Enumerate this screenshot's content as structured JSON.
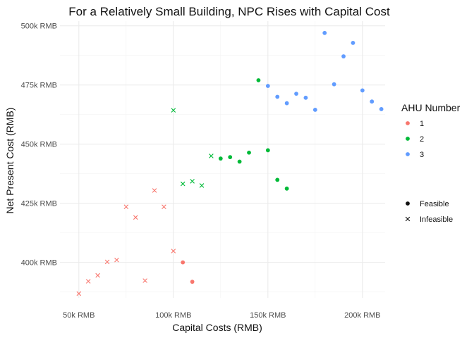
{
  "chart_data": {
    "type": "scatter",
    "title": "For a Relatively Small Building, NPC Rises with Capital Cost",
    "xlabel": "Capital Costs (RMB)",
    "ylabel": "Net Present Cost (RMB)",
    "xlim": [
      40000,
      212000
    ],
    "ylim": [
      385000,
      502000
    ],
    "x_ticks": [
      50000,
      100000,
      150000,
      200000
    ],
    "x_tick_labels": [
      "50k RMB",
      "100k RMB",
      "150k RMB",
      "200k RMB"
    ],
    "y_ticks": [
      400000,
      425000,
      450000,
      475000,
      500000
    ],
    "y_tick_labels": [
      "400k RMB",
      "425k RMB",
      "450k RMB",
      "475k RMB",
      "500k RMB"
    ],
    "grid": true,
    "legend_color": {
      "title": "AHU Number",
      "placement": "right",
      "entries": [
        {
          "label": "1",
          "color": "#F8766D"
        },
        {
          "label": "2",
          "color": "#00BA38"
        },
        {
          "label": "3",
          "color": "#619CFF"
        }
      ]
    },
    "legend_shape": {
      "placement": "right",
      "entries": [
        {
          "label": "Feasible",
          "shape": "circle"
        },
        {
          "label": "Infeasible",
          "shape": "cross"
        }
      ]
    },
    "points": [
      {
        "x": 50000,
        "y": 386800,
        "ahu": "1",
        "status": "Infeasible"
      },
      {
        "x": 55000,
        "y": 392000,
        "ahu": "1",
        "status": "Infeasible"
      },
      {
        "x": 60000,
        "y": 394500,
        "ahu": "1",
        "status": "Infeasible"
      },
      {
        "x": 65000,
        "y": 400200,
        "ahu": "1",
        "status": "Infeasible"
      },
      {
        "x": 70000,
        "y": 401000,
        "ahu": "1",
        "status": "Infeasible"
      },
      {
        "x": 75000,
        "y": 423500,
        "ahu": "1",
        "status": "Infeasible"
      },
      {
        "x": 80000,
        "y": 419000,
        "ahu": "1",
        "status": "Infeasible"
      },
      {
        "x": 85000,
        "y": 392300,
        "ahu": "1",
        "status": "Infeasible"
      },
      {
        "x": 90000,
        "y": 430400,
        "ahu": "1",
        "status": "Infeasible"
      },
      {
        "x": 95000,
        "y": 423500,
        "ahu": "1",
        "status": "Infeasible"
      },
      {
        "x": 100000,
        "y": 404800,
        "ahu": "1",
        "status": "Infeasible"
      },
      {
        "x": 105000,
        "y": 400000,
        "ahu": "1",
        "status": "Feasible"
      },
      {
        "x": 110000,
        "y": 391800,
        "ahu": "1",
        "status": "Feasible"
      },
      {
        "x": 100000,
        "y": 464300,
        "ahu": "2",
        "status": "Infeasible"
      },
      {
        "x": 105000,
        "y": 433200,
        "ahu": "2",
        "status": "Infeasible"
      },
      {
        "x": 110000,
        "y": 434300,
        "ahu": "2",
        "status": "Infeasible"
      },
      {
        "x": 115000,
        "y": 432500,
        "ahu": "2",
        "status": "Infeasible"
      },
      {
        "x": 120000,
        "y": 445000,
        "ahu": "2",
        "status": "Infeasible"
      },
      {
        "x": 125000,
        "y": 443900,
        "ahu": "2",
        "status": "Feasible"
      },
      {
        "x": 130000,
        "y": 444500,
        "ahu": "2",
        "status": "Feasible"
      },
      {
        "x": 135000,
        "y": 442600,
        "ahu": "2",
        "status": "Feasible"
      },
      {
        "x": 140000,
        "y": 446400,
        "ahu": "2",
        "status": "Feasible"
      },
      {
        "x": 145000,
        "y": 477000,
        "ahu": "2",
        "status": "Feasible"
      },
      {
        "x": 150000,
        "y": 447400,
        "ahu": "2",
        "status": "Feasible"
      },
      {
        "x": 155000,
        "y": 434900,
        "ahu": "2",
        "status": "Feasible"
      },
      {
        "x": 160000,
        "y": 431200,
        "ahu": "2",
        "status": "Feasible"
      },
      {
        "x": 150000,
        "y": 474600,
        "ahu": "3",
        "status": "Feasible"
      },
      {
        "x": 155000,
        "y": 470000,
        "ahu": "3",
        "status": "Feasible"
      },
      {
        "x": 160000,
        "y": 467300,
        "ahu": "3",
        "status": "Feasible"
      },
      {
        "x": 165000,
        "y": 471300,
        "ahu": "3",
        "status": "Feasible"
      },
      {
        "x": 170000,
        "y": 469600,
        "ahu": "3",
        "status": "Feasible"
      },
      {
        "x": 175000,
        "y": 464500,
        "ahu": "3",
        "status": "Feasible"
      },
      {
        "x": 180000,
        "y": 497000,
        "ahu": "3",
        "status": "Feasible"
      },
      {
        "x": 185000,
        "y": 475300,
        "ahu": "3",
        "status": "Feasible"
      },
      {
        "x": 190000,
        "y": 487100,
        "ahu": "3",
        "status": "Feasible"
      },
      {
        "x": 195000,
        "y": 492800,
        "ahu": "3",
        "status": "Feasible"
      },
      {
        "x": 200000,
        "y": 472700,
        "ahu": "3",
        "status": "Feasible"
      },
      {
        "x": 205000,
        "y": 468000,
        "ahu": "3",
        "status": "Feasible"
      },
      {
        "x": 210000,
        "y": 464800,
        "ahu": "3",
        "status": "Feasible"
      }
    ]
  }
}
